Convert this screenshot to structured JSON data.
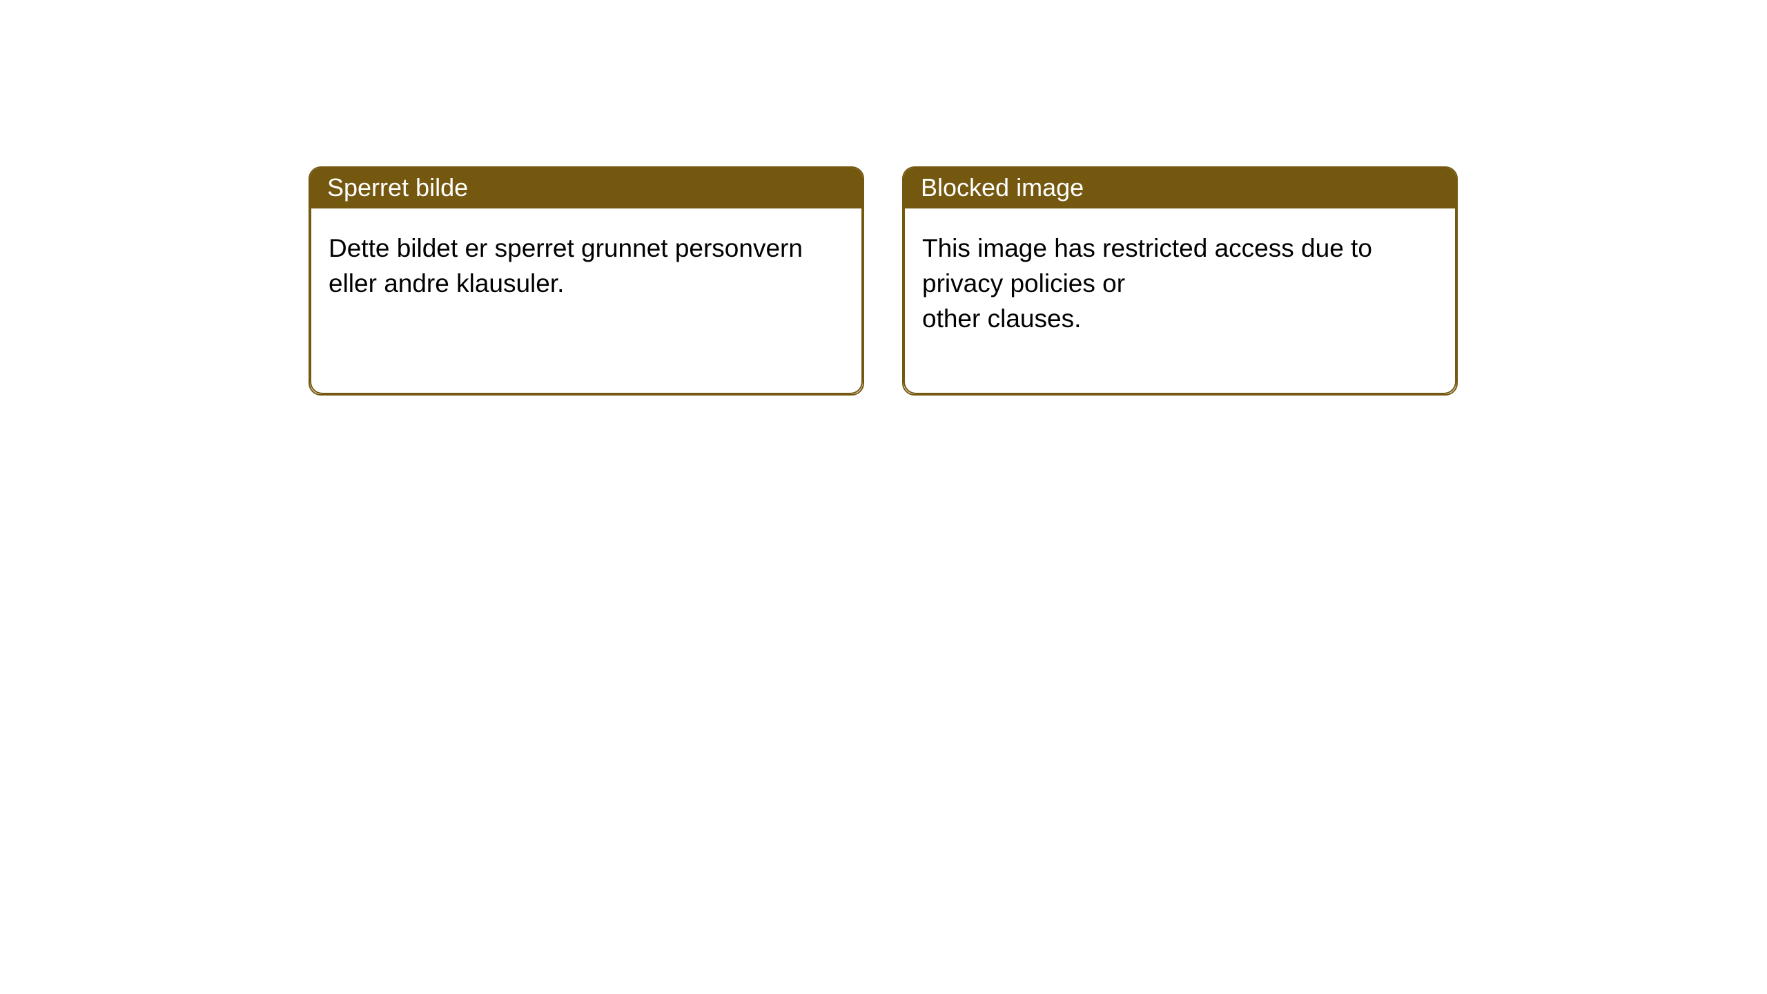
{
  "style": {
    "header_background": "#745810",
    "header_text_color": "#ffffff",
    "body_background": "#ffffff",
    "body_text_color": "#000000",
    "border_color": "#745810",
    "border_width": "2px",
    "header_fontsize": "36px",
    "body_fontsize": "37px",
    "border_radius": "18px"
  },
  "notices": [
    {
      "header": "Sperret bilde",
      "body": "Dette bildet er sperret grunnet personvern eller andre klausuler."
    },
    {
      "header": "Blocked image",
      "body": "This image has restricted access due to privacy policies or\nother clauses."
    }
  ]
}
